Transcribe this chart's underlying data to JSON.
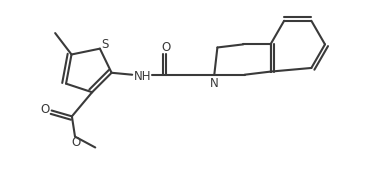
{
  "background_color": "#ffffff",
  "line_color": "#3a3a3a",
  "line_width": 1.5,
  "figsize": [
    3.71,
    1.79
  ],
  "dpi": 100,
  "xlim": [
    0,
    9.5
  ],
  "ylim": [
    0,
    4.5
  ]
}
